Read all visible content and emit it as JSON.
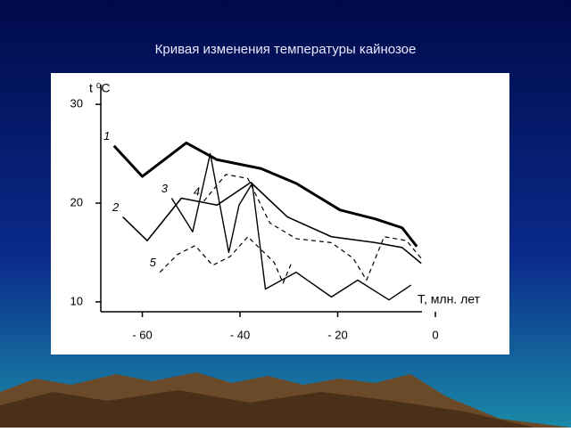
{
  "chart_data": {
    "type": "line",
    "title": "Кривая изменения температуры кайнозое",
    "ylabel": "t ⁰C",
    "xlabel": "T, млн. лет",
    "xlim": [
      -68.5,
      0
    ],
    "ylim": [
      9,
      32
    ],
    "xticks": [
      {
        "value": -60,
        "label": "- 60"
      },
      {
        "value": -40,
        "label": "- 40"
      },
      {
        "value": -20,
        "label": "- 20"
      },
      0
    ],
    "yticks": [
      10,
      20,
      30
    ],
    "series": [
      {
        "name": "1",
        "color": "#000000",
        "width": 3,
        "dashed": false,
        "x": [
          -65.8,
          -60,
          -51,
          -44.7,
          -35.7,
          -28.5,
          -19.5,
          -12.3,
          -6.8,
          -3.8
        ],
        "values": [
          25.8,
          22.7,
          26.1,
          24.4,
          23.5,
          22,
          19.3,
          18.4,
          17.5,
          15.6
        ]
      },
      {
        "name": "2",
        "color": "#000000",
        "width": 1.6,
        "dashed": false,
        "x": [
          -64,
          -59,
          -52,
          -44.7,
          -37.8,
          -30.3,
          -21.3,
          -12.3,
          -6.8,
          -2.9
        ],
        "values": [
          18.6,
          16.2,
          20.5,
          19.8,
          22.1,
          18.6,
          16.6,
          16,
          15.5,
          13.9
        ]
      },
      {
        "name": "3",
        "color": "#000000",
        "width": 1.4,
        "dashed": false,
        "x": [
          -54,
          -49.7,
          -46.1,
          -42.3,
          -40.2,
          -37.5,
          -34.8,
          -28.5,
          -21.3,
          -15.9,
          -9.5,
          -5
        ],
        "values": [
          20.5,
          17.1,
          25,
          15,
          19.8,
          22,
          11.3,
          13,
          10.5,
          12.2,
          10.2,
          11.7
        ]
      },
      {
        "name": "4",
        "color": "#000000",
        "width": 1.2,
        "dashed": true,
        "x": [
          -47.4,
          -42.9,
          -38.4,
          -33.9,
          -28.5,
          -21.3,
          -16.8,
          -14.1,
          -10.5,
          -5.9,
          -2.9
        ],
        "values": [
          20.2,
          22.9,
          22.5,
          18,
          16.4,
          16,
          14.4,
          12.2,
          16.6,
          16.2,
          14.4
        ]
      },
      {
        "name": "5",
        "color": "#000000",
        "width": 1.2,
        "dashed": true,
        "x": [
          -56.4,
          -52.8,
          -49.2,
          -45.6,
          -42,
          -38.4,
          -33,
          -31.2,
          -29.4
        ],
        "values": [
          13,
          14.8,
          15.7,
          13.7,
          14.6,
          16.6,
          14,
          11.9,
          14
        ]
      }
    ]
  }
}
